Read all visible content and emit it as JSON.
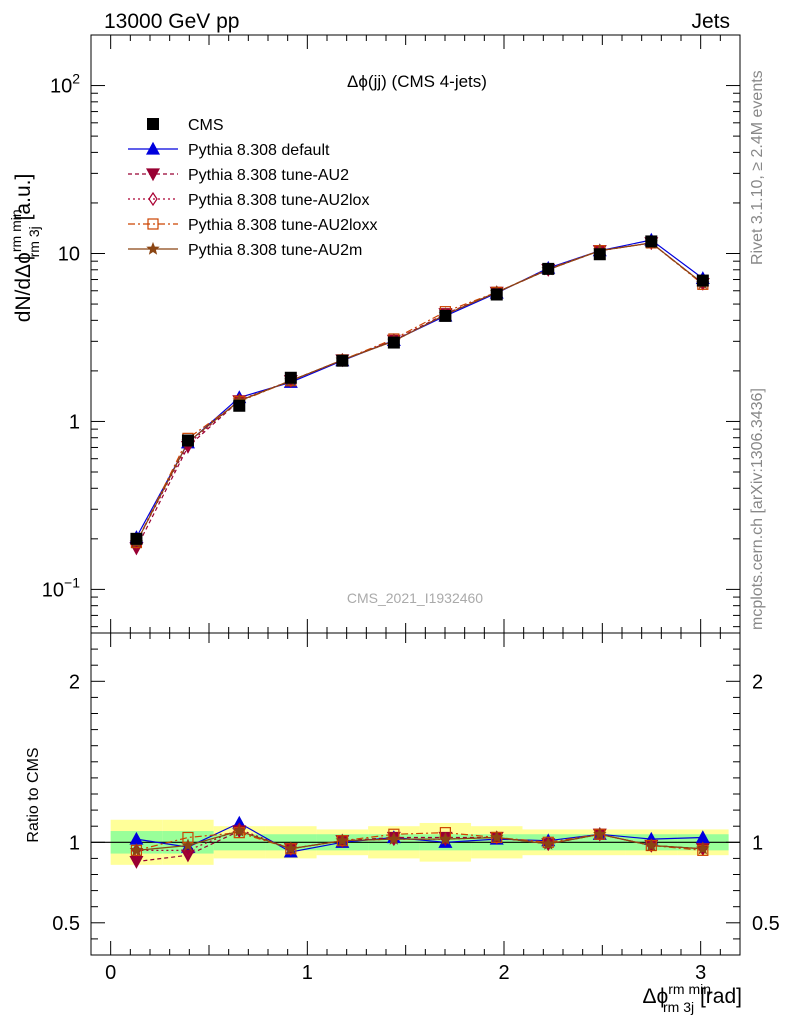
{
  "header": {
    "left": "13000 GeV pp",
    "right": "Jets"
  },
  "side_labels": {
    "rivet_prefix": "Rivet 3.1.10, ",
    "rivet_ge": "≥",
    "rivet_suffix": " 2.4M events",
    "mcplots": "mcplots.cern.ch [arXiv:1306.3436]"
  },
  "watermark": "CMS_2021_I1932460",
  "colors": {
    "cms": "#000000",
    "default": "#0000dd",
    "au2": "#990033",
    "au2lox": "#aa0033",
    "au2loxx": "#cc4400",
    "au2m": "#8b4513",
    "band_green": "#99ff99",
    "band_yellow": "#ffff99"
  },
  "chart_data": {
    "type": "line",
    "title": "Δϕ(jj) (CMS 4-jets)",
    "title_parts": {
      "main": "Δϕ(jj)",
      "tail": " (CMS 4-jets)"
    },
    "ylabel": "dN/dΔϕ^{rm min}_{rm 3j} [a.u.]",
    "ylabel_parts": {
      "a": "dN/dΔϕ",
      "sup": "rm min",
      "sub": "rm 3j",
      "b": " [a.u.]"
    },
    "xlabel": "Δϕ^{rm min}_{rm 3j} [rad]",
    "xlabel_parts": {
      "a": "Δϕ",
      "sup": "rm min",
      "sub": "rm 3j",
      "b": " [rad]"
    },
    "ratio_ylabel": "Ratio to CMS",
    "xlim": [
      -0.1,
      3.2
    ],
    "ylim": [
      0.055,
      200
    ],
    "yscale": "log",
    "ratio_ylim": [
      0.3,
      2.3
    ],
    "x_ticks": [
      "0",
      "1",
      "2",
      "3"
    ],
    "y_ticks": [
      {
        "base": "10",
        "exp": "−1"
      },
      {
        "base": "1",
        "exp": ""
      },
      {
        "base": "10",
        "exp": ""
      },
      {
        "base": "10",
        "exp": "2"
      }
    ],
    "ratio_ticks": [
      "0.5",
      "1",
      "2"
    ],
    "legend": [
      {
        "key": "cms",
        "label": "CMS"
      },
      {
        "key": "default",
        "label": "Pythia 8.308 default"
      },
      {
        "key": "au2",
        "label": "Pythia 8.308 tune-AU2"
      },
      {
        "key": "au2lox",
        "label": "Pythia 8.308 tune-AU2lox"
      },
      {
        "key": "au2loxx",
        "label": "Pythia 8.308 tune-AU2loxx"
      },
      {
        "key": "au2m",
        "label": "Pythia 8.308 tune-AU2m"
      }
    ],
    "x": [
      0.131,
      0.393,
      0.654,
      0.916,
      1.178,
      1.44,
      1.702,
      1.963,
      2.225,
      2.487,
      2.749,
      3.011
    ],
    "data": {
      "name": "CMS",
      "values": [
        0.2,
        0.77,
        1.24,
        1.82,
        2.3,
        2.95,
        4.25,
        5.7,
        8.1,
        9.9,
        11.8,
        6.9
      ],
      "stat_band": [
        0.07,
        0.07,
        0.05,
        0.05,
        0.05,
        0.05,
        0.05,
        0.05,
        0.05,
        0.05,
        0.05,
        0.05
      ],
      "total_band": [
        0.14,
        0.14,
        0.1,
        0.1,
        0.08,
        0.1,
        0.12,
        0.1,
        0.08,
        0.08,
        0.08,
        0.08
      ]
    },
    "series": [
      {
        "name": "Pythia 8.308 default",
        "key": "default",
        "ratio": [
          1.02,
          0.97,
          1.12,
          0.94,
          1.0,
          1.03,
          1.0,
          1.02,
          1.01,
          1.05,
          1.02,
          1.03
        ]
      },
      {
        "name": "Pythia 8.308 tune-AU2",
        "key": "au2",
        "ratio": [
          0.88,
          0.92,
          1.07,
          0.96,
          1.01,
          1.03,
          1.03,
          1.03,
          0.99,
          1.05,
          0.98,
          0.96
        ]
      },
      {
        "name": "Pythia 8.308 tune-AU2lox",
        "key": "au2lox",
        "ratio": [
          0.95,
          0.95,
          1.08,
          0.96,
          1.01,
          1.02,
          1.02,
          1.03,
          0.99,
          1.05,
          0.98,
          0.96
        ]
      },
      {
        "name": "Pythia 8.308 tune-AU2loxx",
        "key": "au2loxx",
        "ratio": [
          0.95,
          1.03,
          1.06,
          0.96,
          1.01,
          1.05,
          1.06,
          1.03,
          1.0,
          1.05,
          0.98,
          0.95
        ]
      },
      {
        "name": "Pythia 8.308 tune-AU2m",
        "key": "au2m",
        "ratio": [
          0.95,
          0.98,
          1.07,
          0.96,
          1.01,
          1.02,
          1.02,
          1.03,
          0.99,
          1.05,
          0.98,
          0.96
        ]
      }
    ]
  }
}
